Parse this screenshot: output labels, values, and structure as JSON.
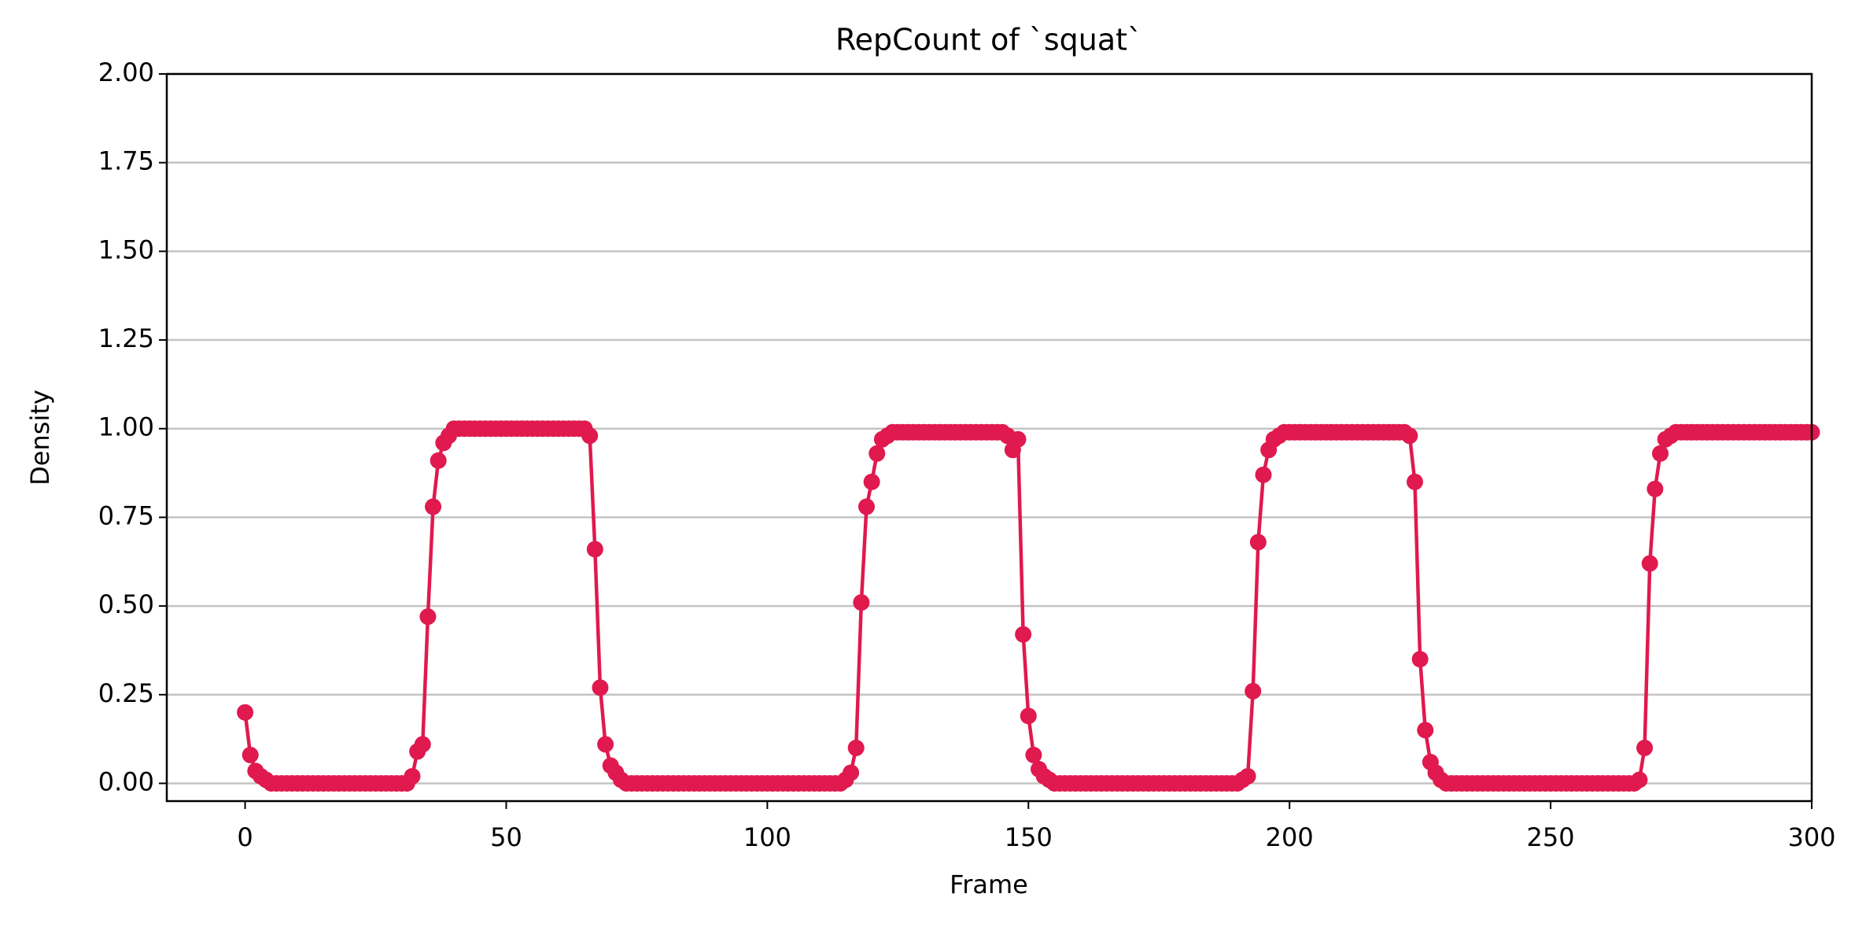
{
  "chart_data": {
    "type": "line",
    "title": "RepCount of `squat`",
    "xlabel": "Frame",
    "ylabel": "Density",
    "color": "#e0194e",
    "grid": true,
    "xlim": [
      -15,
      300
    ],
    "ylim": [
      -0.05,
      2.0
    ],
    "xticks": [
      0,
      50,
      100,
      150,
      200,
      250,
      300
    ],
    "yticks": [
      {
        "value": 0,
        "label": "0.00"
      },
      {
        "value": 0.25,
        "label": "0.25"
      },
      {
        "value": 0.5,
        "label": "0.50"
      },
      {
        "value": 0.75,
        "label": "0.75"
      },
      {
        "value": 1,
        "label": "1.00"
      },
      {
        "value": 1.25,
        "label": "1.25"
      },
      {
        "value": 1.5,
        "label": "1.50"
      },
      {
        "value": 1.75,
        "label": "1.75"
      },
      {
        "value": 2,
        "label": "2.00"
      }
    ],
    "x": [
      0,
      1,
      2,
      3,
      4,
      5,
      6,
      7,
      8,
      9,
      10,
      11,
      12,
      13,
      14,
      15,
      16,
      17,
      18,
      19,
      20,
      21,
      22,
      23,
      24,
      25,
      26,
      27,
      28,
      29,
      30,
      31,
      32,
      33,
      34,
      35,
      36,
      37,
      38,
      39,
      40,
      41,
      42,
      43,
      44,
      45,
      46,
      47,
      48,
      49,
      50,
      51,
      52,
      53,
      54,
      55,
      56,
      57,
      58,
      59,
      60,
      61,
      62,
      63,
      64,
      65,
      66,
      67,
      68,
      69,
      70,
      71,
      72,
      73,
      74,
      75,
      76,
      77,
      78,
      79,
      80,
      81,
      82,
      83,
      84,
      85,
      86,
      87,
      88,
      89,
      90,
      91,
      92,
      93,
      94,
      95,
      96,
      97,
      98,
      99,
      100,
      101,
      102,
      103,
      104,
      105,
      106,
      107,
      108,
      109,
      110,
      111,
      112,
      113,
      114,
      115,
      116,
      117,
      118,
      119,
      120,
      121,
      122,
      123,
      124,
      125,
      126,
      127,
      128,
      129,
      130,
      131,
      132,
      133,
      134,
      135,
      136,
      137,
      138,
      139,
      140,
      141,
      142,
      143,
      144,
      145,
      146,
      147,
      148,
      149,
      150,
      151,
      152,
      153,
      154,
      155,
      156,
      157,
      158,
      159,
      160,
      161,
      162,
      163,
      164,
      165,
      166,
      167,
      168,
      169,
      170,
      171,
      172,
      173,
      174,
      175,
      176,
      177,
      178,
      179,
      180,
      181,
      182,
      183,
      184,
      185,
      186,
      187,
      188,
      189,
      190,
      191,
      192,
      193,
      194,
      195,
      196,
      197,
      198,
      199,
      200,
      201,
      202,
      203,
      204,
      205,
      206,
      207,
      208,
      209,
      210,
      211,
      212,
      213,
      214,
      215,
      216,
      217,
      218,
      219,
      220,
      221,
      222,
      223,
      224,
      225,
      226,
      227,
      228,
      229,
      230,
      231,
      232,
      233,
      234,
      235,
      236,
      237,
      238,
      239,
      240,
      241,
      242,
      243,
      244,
      245,
      246,
      247,
      248,
      249,
      250,
      251,
      252,
      253,
      254,
      255,
      256,
      257,
      258,
      259,
      260,
      261,
      262,
      263,
      264,
      265,
      266,
      267,
      268,
      269,
      270,
      271,
      272,
      273,
      274,
      275,
      276,
      277,
      278,
      279,
      280,
      281,
      282,
      283,
      284,
      285,
      286,
      287,
      288,
      289,
      290,
      291,
      292,
      293,
      294,
      295,
      296,
      297,
      298,
      299,
      300
    ],
    "values": [
      0.2,
      0.08,
      0.035,
      0.02,
      0.01,
      0,
      0,
      0,
      0,
      0,
      0,
      0,
      0,
      0,
      0,
      0,
      0,
      0,
      0,
      0,
      0,
      0,
      0,
      0,
      0,
      0,
      0,
      0,
      0,
      0,
      0,
      0,
      0.02,
      0.09,
      0.11,
      0.47,
      0.78,
      0.91,
      0.96,
      0.98,
      1,
      1,
      1,
      1,
      1,
      1,
      1,
      1,
      1,
      1,
      1,
      1,
      1,
      1,
      1,
      1,
      1,
      1,
      1,
      1,
      1,
      1,
      1,
      1,
      1,
      1,
      0.98,
      0.66,
      0.27,
      0.11,
      0.05,
      0.03,
      0.01,
      0,
      0,
      0,
      0,
      0,
      0,
      0,
      0,
      0,
      0,
      0,
      0,
      0,
      0,
      0,
      0,
      0,
      0,
      0,
      0,
      0,
      0,
      0,
      0,
      0,
      0,
      0,
      0,
      0,
      0,
      0,
      0,
      0,
      0,
      0,
      0,
      0,
      0,
      0,
      0,
      0,
      0,
      0.01,
      0.03,
      0.1,
      0.51,
      0.78,
      0.85,
      0.93,
      0.97,
      0.98,
      0.99,
      0.99,
      0.99,
      0.99,
      0.99,
      0.99,
      0.99,
      0.99,
      0.99,
      0.99,
      0.99,
      0.99,
      0.99,
      0.99,
      0.99,
      0.99,
      0.99,
      0.99,
      0.99,
      0.99,
      0.99,
      0.99,
      0.98,
      0.94,
      0.97,
      0.42,
      0.19,
      0.08,
      0.04,
      0.02,
      0.01,
      0,
      0,
      0,
      0,
      0,
      0,
      0,
      0,
      0,
      0,
      0,
      0,
      0,
      0,
      0,
      0,
      0,
      0,
      0,
      0,
      0,
      0,
      0,
      0,
      0,
      0,
      0,
      0,
      0,
      0,
      0,
      0,
      0,
      0,
      0,
      0,
      0.01,
      0.02,
      0.26,
      0.68,
      0.87,
      0.94,
      0.97,
      0.98,
      0.99,
      0.99,
      0.99,
      0.99,
      0.99,
      0.99,
      0.99,
      0.99,
      0.99,
      0.99,
      0.99,
      0.99,
      0.99,
      0.99,
      0.99,
      0.99,
      0.99,
      0.99,
      0.99,
      0.99,
      0.99,
      0.99,
      0.99,
      0.99,
      0.98,
      0.85,
      0.35,
      0.15,
      0.06,
      0.03,
      0.01,
      0,
      0,
      0,
      0,
      0,
      0,
      0,
      0,
      0,
      0,
      0,
      0,
      0,
      0,
      0,
      0,
      0,
      0,
      0,
      0,
      0,
      0,
      0,
      0,
      0,
      0,
      0,
      0,
      0,
      0,
      0,
      0,
      0,
      0,
      0,
      0,
      0,
      0.01,
      0.1,
      0.62,
      0.83,
      0.93,
      0.97,
      0.98,
      0.99,
      0.99,
      0.99,
      0.99,
      0.99,
      0.99,
      0.99,
      0.99,
      0.99,
      0.99,
      0.99,
      0.99,
      0.99,
      0.99,
      0.99,
      0.99,
      0.99,
      0.99,
      0.99,
      0.99,
      0.99,
      0.99,
      0.99,
      0.99,
      0.99,
      0.99,
      0.99
    ]
  }
}
